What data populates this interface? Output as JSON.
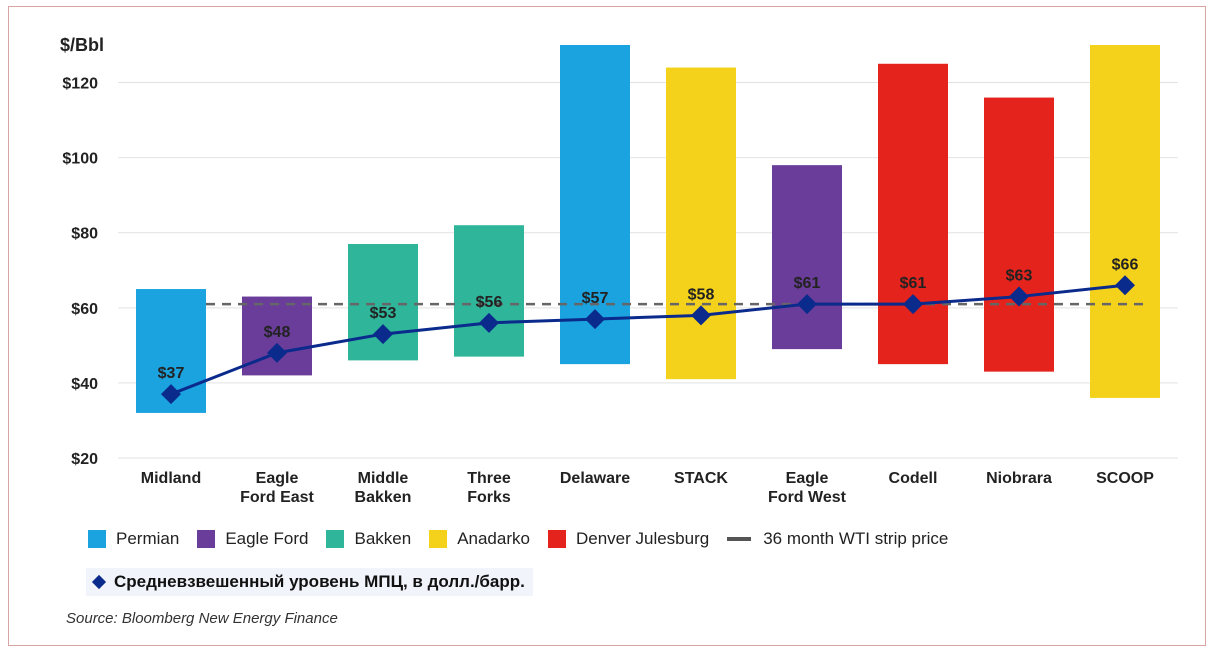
{
  "chart_data": {
    "type": "bar",
    "ylabel": "$/Bbl",
    "ylim": [
      20,
      130
    ],
    "yticks": [
      20,
      40,
      60,
      80,
      100,
      120
    ],
    "ytick_labels": [
      "$20",
      "$40",
      "$60",
      "$80",
      "$100",
      "$120"
    ],
    "categories": [
      [
        "Midland"
      ],
      [
        "Eagle",
        "Ford East"
      ],
      [
        "Middle",
        "Bakken"
      ],
      [
        "Three",
        "Forks"
      ],
      [
        "Delaware"
      ],
      [
        "STACK"
      ],
      [
        "Eagle",
        "Ford West"
      ],
      [
        "Codell"
      ],
      [
        "Niobrara"
      ],
      [
        "SCOOP"
      ]
    ],
    "basins": [
      "Permian",
      "Eagle Ford",
      "Bakken",
      "Bakken",
      "Permian",
      "Anadarko",
      "Eagle Ford",
      "Denver Julesburg",
      "Denver Julesburg",
      "Anadarko"
    ],
    "ranges": [
      [
        32,
        65
      ],
      [
        42,
        63
      ],
      [
        46,
        77
      ],
      [
        47,
        82
      ],
      [
        45,
        130
      ],
      [
        41,
        124
      ],
      [
        49,
        98
      ],
      [
        45,
        125
      ],
      [
        43,
        116
      ],
      [
        36,
        130
      ]
    ],
    "weighted_breakeven": [
      37,
      48,
      53,
      56,
      57,
      58,
      61,
      61,
      63,
      66
    ],
    "point_labels": [
      "$37",
      "$48",
      "$53",
      "$56",
      "$57",
      "$58",
      "$61",
      "$61",
      "$63",
      "$66"
    ],
    "wti_strip_price": 61,
    "grid": true,
    "legend": [
      {
        "name": "Permian",
        "color": "#1ba3e0"
      },
      {
        "name": "Eagle Ford",
        "color": "#6a3d9a"
      },
      {
        "name": "Bakken",
        "color": "#2fb59a"
      },
      {
        "name": "Anadarko",
        "color": "#f4d21c"
      },
      {
        "name": "Denver Julesburg",
        "color": "#e3231c"
      },
      {
        "name": "36 month WTI strip price",
        "color": "#555555"
      }
    ],
    "line_color": "#0a2a8c",
    "series_note": "Средневзвешенный уровень МПЦ, в долл./барр.",
    "source": "Source: Bloomberg New Energy Finance"
  }
}
